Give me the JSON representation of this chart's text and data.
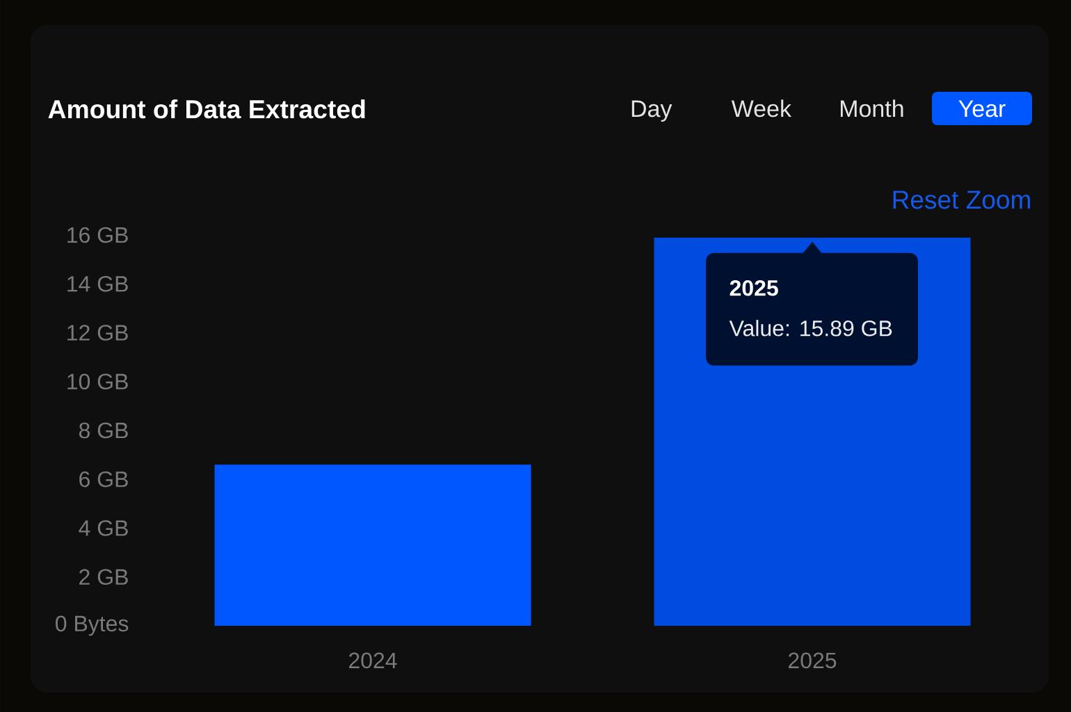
{
  "chart_data": {
    "type": "bar",
    "title": "Amount of Data Extracted",
    "categories": [
      "2024",
      "2025"
    ],
    "values": [
      6.6,
      15.89
    ],
    "colors": [
      "#0057ff",
      "#004ce0"
    ],
    "ylim": [
      0,
      16
    ],
    "yticks": [
      {
        "value": 0,
        "label": "0 Bytes"
      },
      {
        "value": 2,
        "label": "2 GB"
      },
      {
        "value": 4,
        "label": "4 GB"
      },
      {
        "value": 6,
        "label": "6 GB"
      },
      {
        "value": 8,
        "label": "8 GB"
      },
      {
        "value": 10,
        "label": "10 GB"
      },
      {
        "value": 12,
        "label": "12 GB"
      },
      {
        "value": 14,
        "label": "14 GB"
      },
      {
        "value": 16,
        "label": "16 GB"
      }
    ],
    "annotations": [
      "Day",
      "Week",
      "Month",
      "Year",
      "Reset Zoom",
      "2025",
      "Value: 15.89 GB"
    ]
  }
}
